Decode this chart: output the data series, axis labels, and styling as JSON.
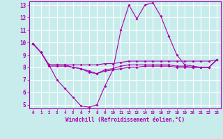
{
  "xlabel": "Windchill (Refroidissement éolien,°C)",
  "bg_color": "#c8ecec",
  "grid_color": "#ffffff",
  "line_color": "#aa00aa",
  "xlim": [
    -0.5,
    23.5
  ],
  "ylim": [
    4.7,
    13.3
  ],
  "yticks": [
    5,
    6,
    7,
    8,
    9,
    10,
    11,
    12,
    13
  ],
  "xticks": [
    0,
    1,
    2,
    3,
    4,
    5,
    6,
    7,
    8,
    9,
    10,
    11,
    12,
    13,
    14,
    15,
    16,
    17,
    18,
    19,
    20,
    21,
    22,
    23
  ],
  "line1": [
    9.9,
    9.2,
    8.2,
    7.0,
    6.3,
    5.6,
    4.9,
    4.8,
    5.0,
    6.5,
    7.8,
    11.0,
    13.0,
    11.9,
    13.0,
    13.2,
    12.1,
    10.5,
    9.0,
    8.2,
    8.1,
    8.0,
    8.0,
    8.6
  ],
  "line2": [
    9.9,
    9.2,
    8.2,
    8.2,
    8.2,
    8.2,
    8.2,
    8.2,
    8.2,
    8.3,
    8.3,
    8.4,
    8.5,
    8.5,
    8.5,
    8.5,
    8.5,
    8.5,
    8.5,
    8.5,
    8.5,
    8.5,
    8.5,
    8.6
  ],
  "line3": [
    9.9,
    9.2,
    8.1,
    8.1,
    8.1,
    8.0,
    7.9,
    7.6,
    7.5,
    7.7,
    7.8,
    7.9,
    8.0,
    8.0,
    8.1,
    8.1,
    8.1,
    8.1,
    8.0,
    8.0,
    8.0,
    8.0,
    8.0,
    8.6
  ],
  "line4": [
    9.9,
    9.2,
    8.2,
    8.2,
    8.2,
    8.0,
    7.9,
    7.7,
    7.5,
    7.8,
    7.9,
    8.1,
    8.2,
    8.2,
    8.2,
    8.2,
    8.2,
    8.2,
    8.1,
    8.1,
    8.0,
    8.0,
    8.0,
    8.6
  ]
}
